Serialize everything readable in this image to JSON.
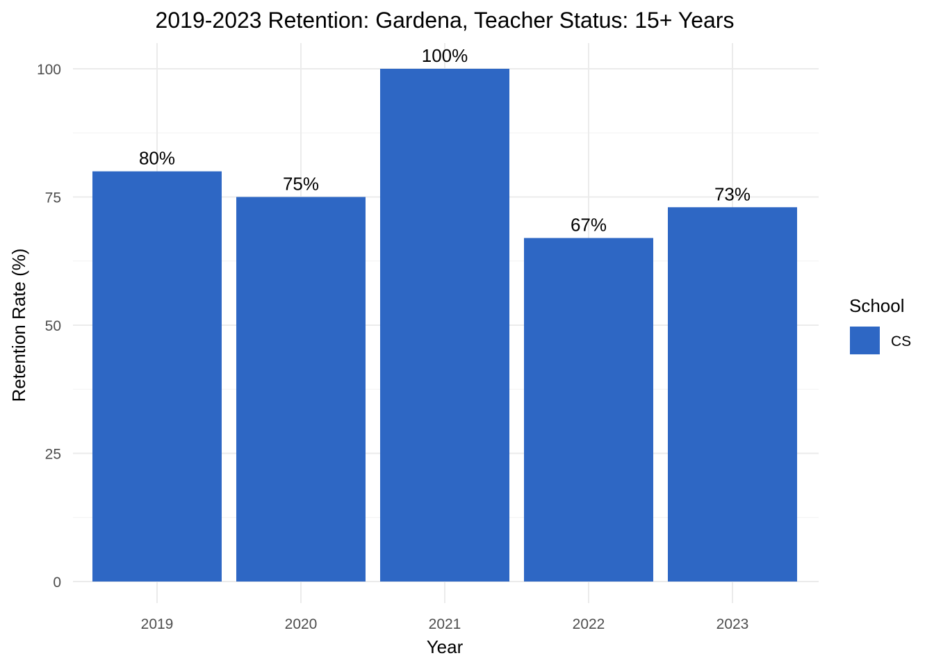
{
  "chart_data": {
    "type": "bar",
    "title": "2019-2023 Retention: Gardena, Teacher Status: 15+ Years",
    "xlabel": "Year",
    "ylabel": "Retention Rate (%)",
    "categories": [
      "2019",
      "2020",
      "2021",
      "2022",
      "2023"
    ],
    "series": [
      {
        "name": "CS",
        "values": [
          80,
          75,
          100,
          67,
          73
        ],
        "labels": [
          "80%",
          "75%",
          "100%",
          "67%",
          "73%"
        ],
        "color": "#2E67C4"
      }
    ],
    "ylim": [
      0,
      100
    ],
    "yticks": [
      "0",
      "25",
      "50",
      "75",
      "100"
    ],
    "ytick_values": [
      0,
      25,
      50,
      75,
      100
    ],
    "grid": true,
    "legend": {
      "title": "School",
      "position": "right"
    }
  }
}
